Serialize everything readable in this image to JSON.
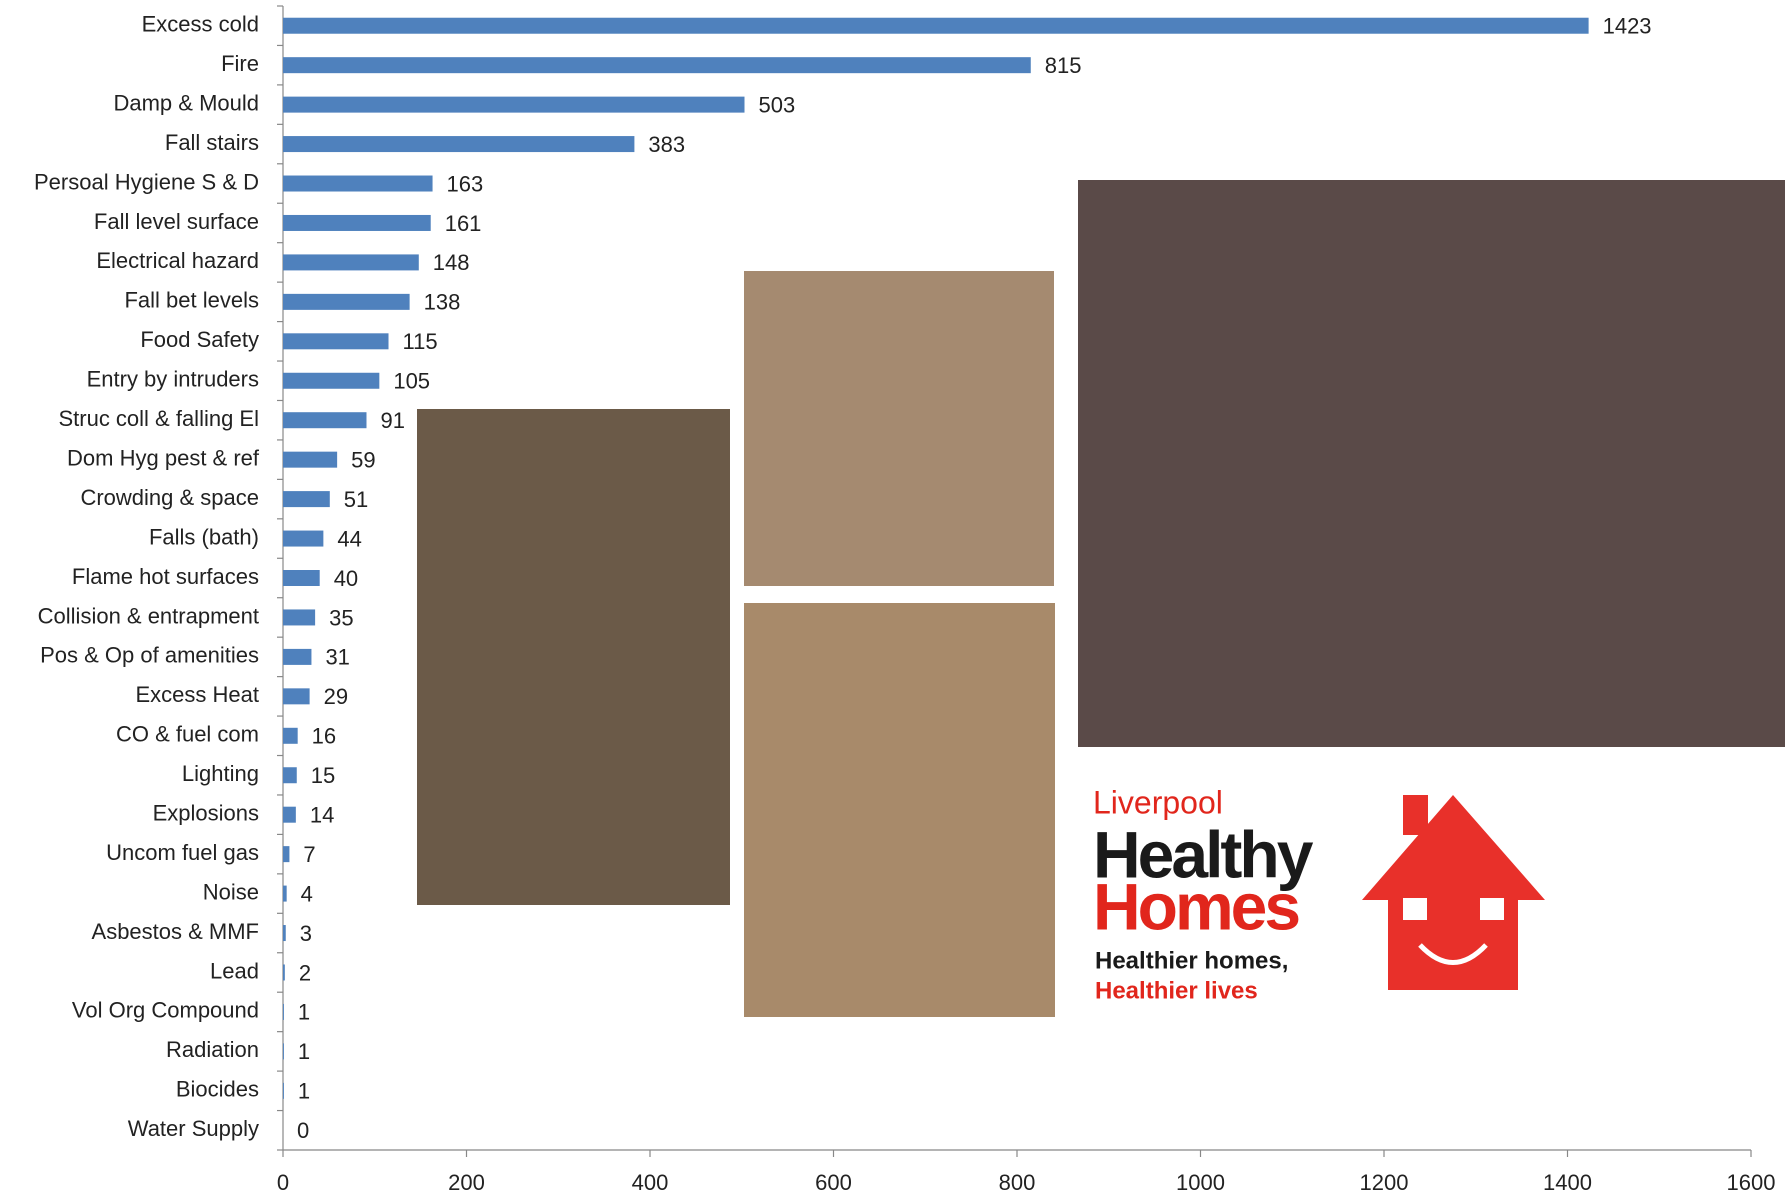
{
  "chart_data": {
    "type": "bar",
    "orientation": "horizontal",
    "categories": [
      "Excess cold",
      "Fire",
      "Damp & Mould",
      "Fall stairs",
      "Persoal Hygiene S & D",
      "Fall level surface",
      "Electrical hazard",
      "Fall bet levels",
      "Food Safety",
      "Entry by intruders",
      "Struc coll & falling El",
      "Dom Hyg pest & ref",
      "Crowding & space",
      "Falls (bath)",
      "Flame hot surfaces",
      "Collision & entrapment",
      "Pos & Op of amenities",
      "Excess Heat",
      "CO & fuel com",
      "Lighting",
      "Explosions",
      "Uncom fuel gas",
      "Noise",
      "Asbestos & MMF",
      "Lead",
      "Vol Org Compound",
      "Radiation",
      "Biocides",
      "Water Supply"
    ],
    "values": [
      1423,
      815,
      503,
      383,
      163,
      161,
      148,
      138,
      115,
      105,
      91,
      59,
      51,
      44,
      40,
      35,
      31,
      29,
      16,
      15,
      14,
      7,
      4,
      3,
      2,
      1,
      1,
      1,
      0
    ],
    "color": "#4f81bd",
    "xlim": [
      0,
      1600
    ],
    "xticks": [
      0,
      200,
      400,
      600,
      800,
      1000,
      1200,
      1400,
      1600
    ]
  },
  "logo": {
    "city": "Liverpool",
    "line1": "Healthy",
    "line2": "Homes",
    "tagline1": "Healthier homes,",
    "tagline2": "Healthier lives"
  }
}
